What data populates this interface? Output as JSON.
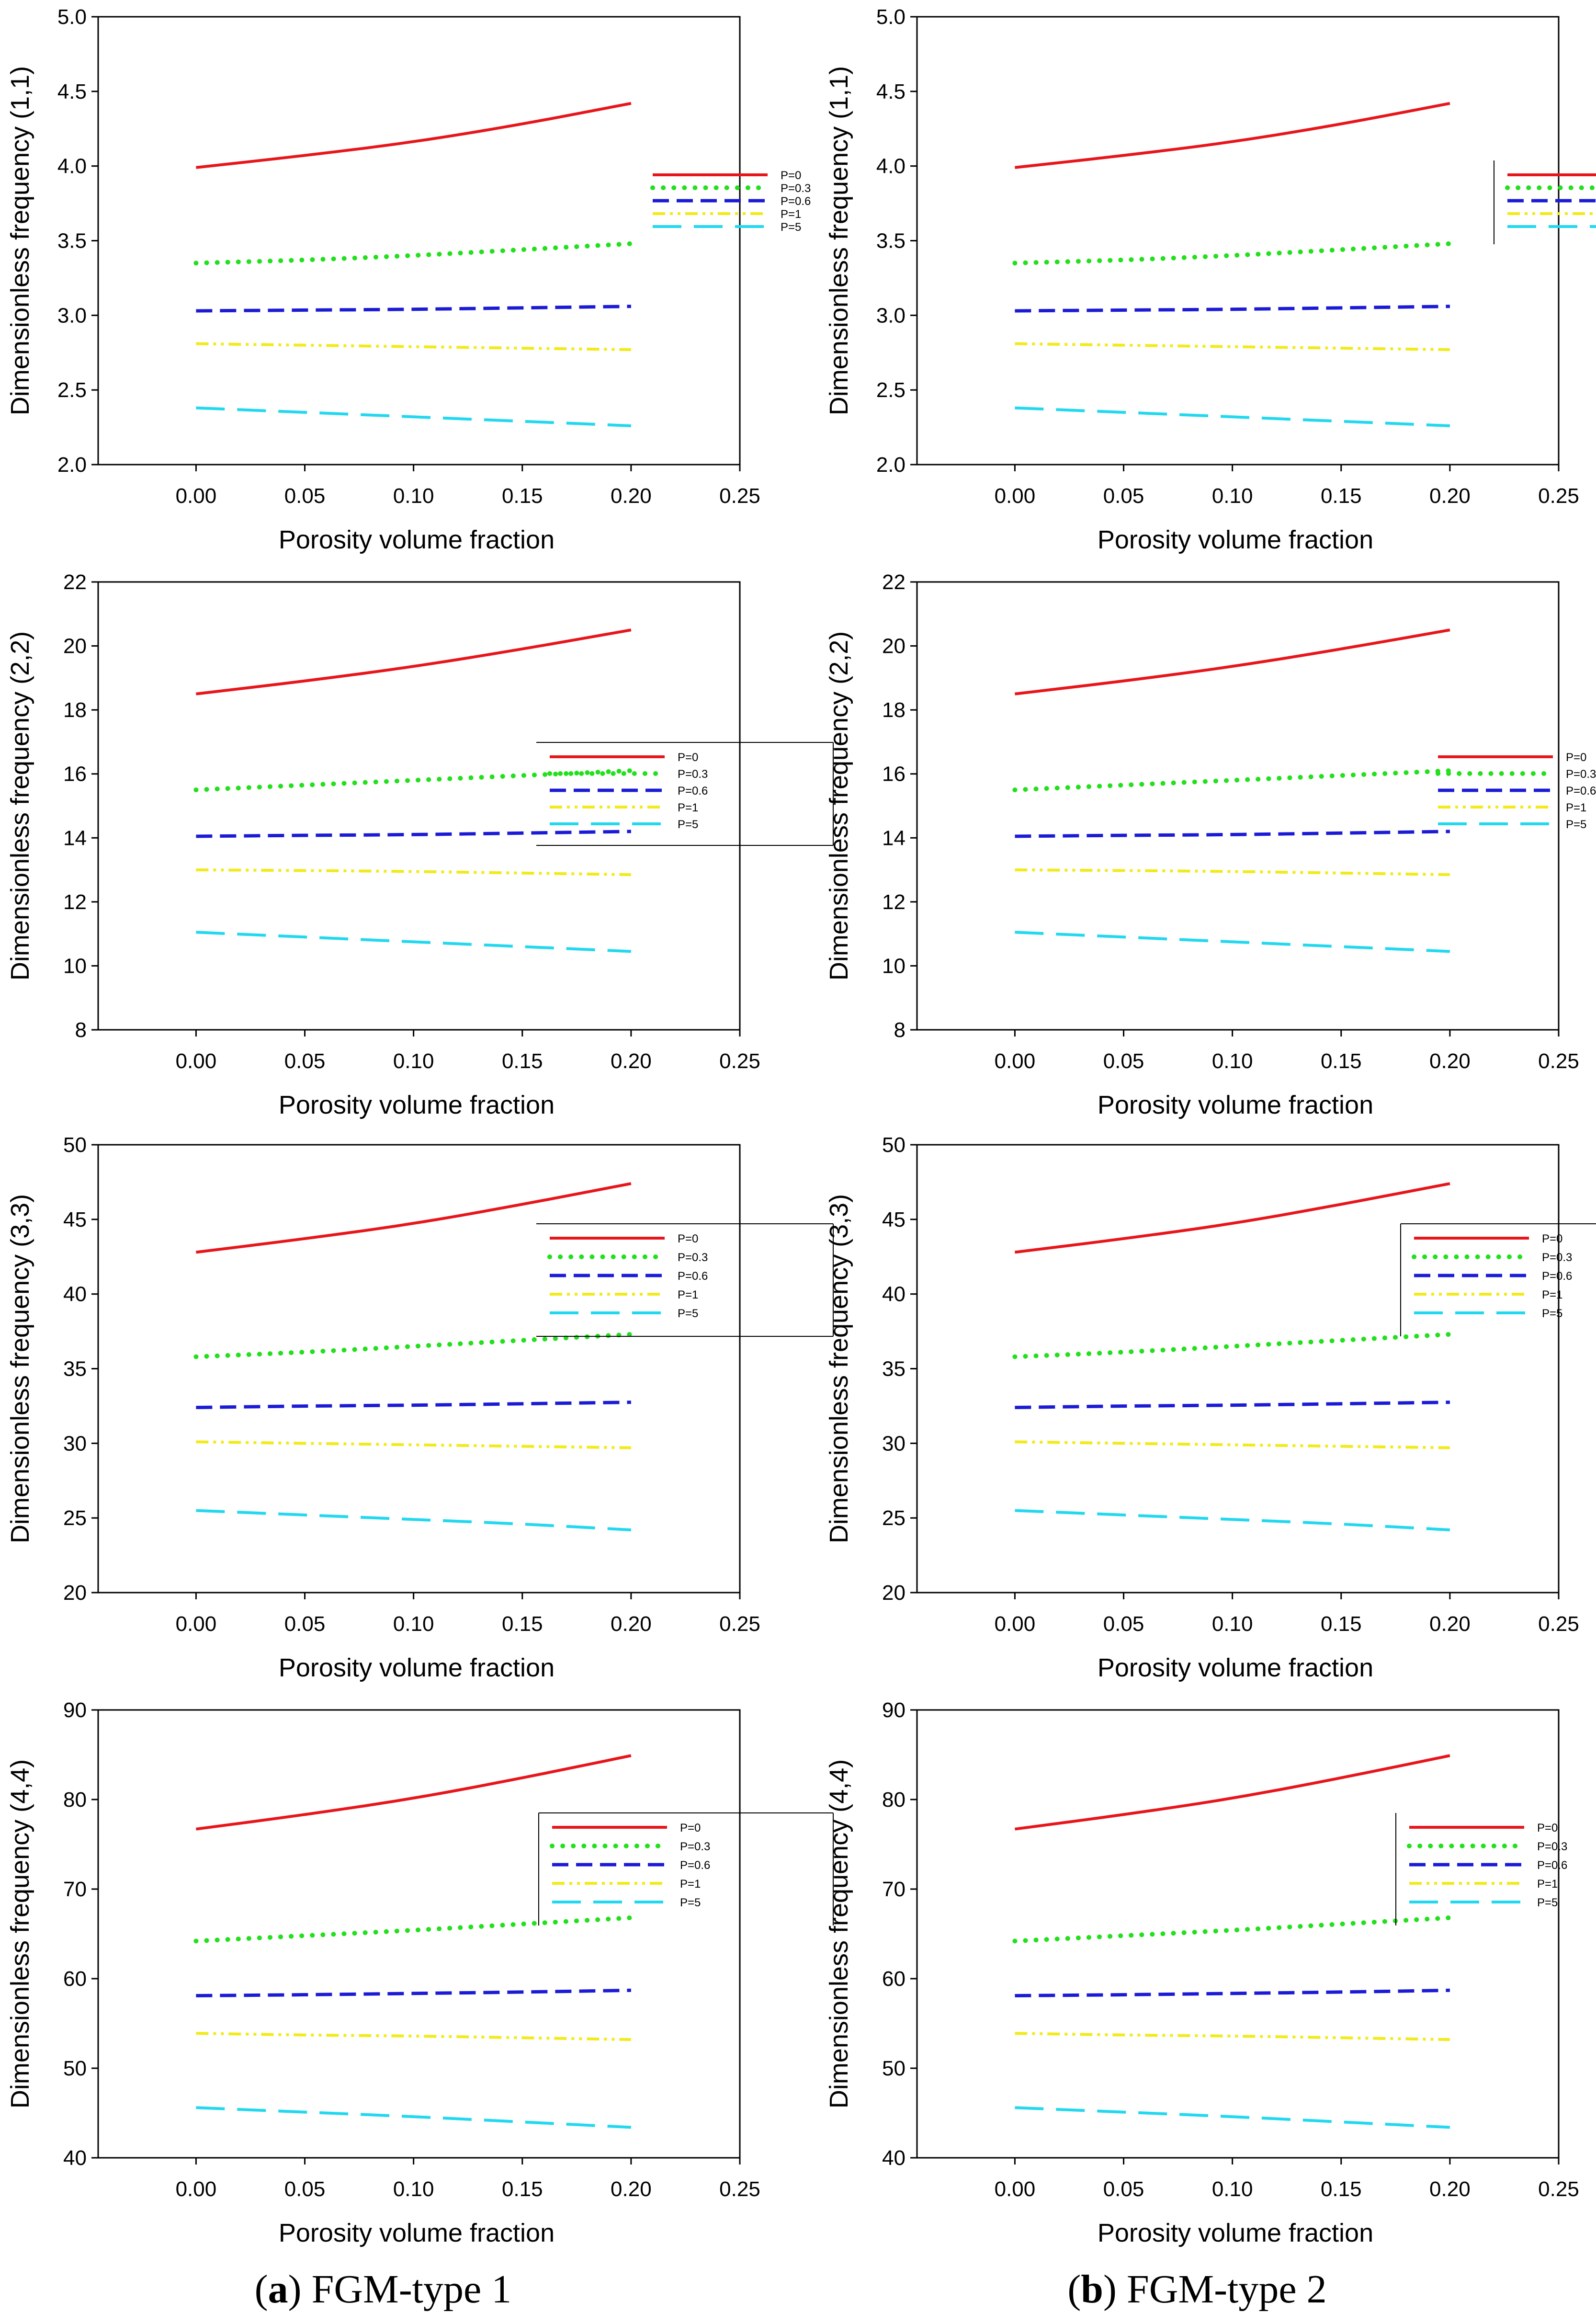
{
  "figure": {
    "captions": [
      {
        "letter": "a",
        "text": "FGM-type 1"
      },
      {
        "letter": "b",
        "text": "FGM-type 2"
      }
    ]
  },
  "legend_labels": [
    "P=0",
    "P=0.3",
    "P=0.6",
    "P=1",
    "P=5"
  ],
  "series_colors": {
    "P=0": "#e8151b",
    "P=0.3": "#22e01c",
    "P=0.6": "#1b1bd6",
    "P=1": "#f2ea1a",
    "P=5": "#22d8f0"
  },
  "chart_data": [
    {
      "type": "line",
      "panel": "a",
      "mode": "(1,1)",
      "xlabel": "Porosity volume fraction",
      "ylabel": "Dimensionless frequency (1,1)",
      "xlim": [
        -0.045,
        0.25
      ],
      "ylim": [
        2.0,
        5.0
      ],
      "xticks": [
        "0.00",
        "0.05",
        "0.10",
        "0.15",
        "0.20",
        "0.25"
      ],
      "yticks": [
        "2.0",
        "2.5",
        "3.0",
        "3.5",
        "4.0",
        "4.5",
        "5.0"
      ],
      "x": [
        0.0,
        0.05,
        0.1,
        0.15,
        0.2
      ],
      "series": [
        {
          "name": "P=0",
          "values": [
            3.99,
            4.07,
            4.16,
            4.28,
            4.42
          ]
        },
        {
          "name": "P=0.3",
          "values": [
            3.35,
            3.37,
            3.4,
            3.44,
            3.48
          ]
        },
        {
          "name": "P=0.6",
          "values": [
            3.03,
            3.035,
            3.04,
            3.05,
            3.06
          ]
        },
        {
          "name": "P=1",
          "values": [
            2.81,
            2.8,
            2.79,
            2.78,
            2.77
          ]
        },
        {
          "name": "P=5",
          "values": [
            2.38,
            2.35,
            2.32,
            2.29,
            2.26
          ]
        }
      ]
    },
    {
      "type": "line",
      "panel": "b",
      "mode": "(1,1)",
      "xlabel": "Porosity volume fraction",
      "ylabel": "Dimensionless frequency (1,1)",
      "xlim": [
        -0.045,
        0.25
      ],
      "ylim": [
        2.0,
        5.0
      ],
      "xticks": [
        "0.00",
        "0.05",
        "0.10",
        "0.15",
        "0.20",
        "0.25"
      ],
      "yticks": [
        "2.0",
        "2.5",
        "3.0",
        "3.5",
        "4.0",
        "4.5",
        "5.0"
      ],
      "x": [
        0.0,
        0.05,
        0.1,
        0.15,
        0.2
      ],
      "series": [
        {
          "name": "P=0",
          "values": [
            3.99,
            4.07,
            4.16,
            4.28,
            4.42
          ]
        },
        {
          "name": "P=0.3",
          "values": [
            3.35,
            3.37,
            3.4,
            3.44,
            3.48
          ]
        },
        {
          "name": "P=0.6",
          "values": [
            3.03,
            3.035,
            3.04,
            3.05,
            3.06
          ]
        },
        {
          "name": "P=1",
          "values": [
            2.81,
            2.8,
            2.79,
            2.78,
            2.77
          ]
        },
        {
          "name": "P=5",
          "values": [
            2.38,
            2.35,
            2.32,
            2.29,
            2.26
          ]
        }
      ]
    },
    {
      "type": "line",
      "panel": "a",
      "mode": "(2,2)",
      "xlabel": "Porosity volume fraction",
      "ylabel": "Dimensionless frequency (2,2)",
      "xlim": [
        -0.045,
        0.25
      ],
      "ylim": [
        8,
        22
      ],
      "xticks": [
        "0.00",
        "0.05",
        "0.10",
        "0.15",
        "0.20",
        "0.25"
      ],
      "yticks": [
        "8",
        "10",
        "12",
        "14",
        "16",
        "18",
        "20",
        "22"
      ],
      "x": [
        0.0,
        0.05,
        0.1,
        0.15,
        0.2
      ],
      "series": [
        {
          "name": "P=0",
          "values": [
            18.5,
            18.9,
            19.35,
            19.9,
            20.5
          ]
        },
        {
          "name": "P=0.3",
          "values": [
            15.5,
            15.65,
            15.8,
            15.95,
            16.1
          ]
        },
        {
          "name": "P=0.6",
          "values": [
            14.05,
            14.08,
            14.1,
            14.15,
            14.2
          ]
        },
        {
          "name": "P=1",
          "values": [
            13.0,
            12.98,
            12.95,
            12.9,
            12.85
          ]
        },
        {
          "name": "P=5",
          "values": [
            11.05,
            10.9,
            10.75,
            10.6,
            10.45
          ]
        }
      ]
    },
    {
      "type": "line",
      "panel": "b",
      "mode": "(2,2)",
      "xlabel": "Porosity volume fraction",
      "ylabel": "Dimensionless frequency (2,2)",
      "xlim": [
        -0.045,
        0.25
      ],
      "ylim": [
        8,
        22
      ],
      "xticks": [
        "0.00",
        "0.05",
        "0.10",
        "0.15",
        "0.20",
        "0.25"
      ],
      "yticks": [
        "8",
        "10",
        "12",
        "14",
        "16",
        "18",
        "20",
        "22"
      ],
      "x": [
        0.0,
        0.05,
        0.1,
        0.15,
        0.2
      ],
      "series": [
        {
          "name": "P=0",
          "values": [
            18.5,
            18.9,
            19.35,
            19.9,
            20.5
          ]
        },
        {
          "name": "P=0.3",
          "values": [
            15.5,
            15.65,
            15.8,
            15.95,
            16.1
          ]
        },
        {
          "name": "P=0.6",
          "values": [
            14.05,
            14.08,
            14.1,
            14.15,
            14.2
          ]
        },
        {
          "name": "P=1",
          "values": [
            13.0,
            12.98,
            12.95,
            12.9,
            12.85
          ]
        },
        {
          "name": "P=5",
          "values": [
            11.05,
            10.9,
            10.75,
            10.6,
            10.45
          ]
        }
      ]
    },
    {
      "type": "line",
      "panel": "a",
      "mode": "(3,3)",
      "xlabel": "Porosity volume fraction",
      "ylabel": "Dimensionless frequency (3,3)",
      "xlim": [
        -0.045,
        0.25
      ],
      "ylim": [
        20,
        50
      ],
      "xticks": [
        "0.00",
        "0.05",
        "0.10",
        "0.15",
        "0.20",
        "0.25"
      ],
      "yticks": [
        "20",
        "25",
        "30",
        "35",
        "40",
        "45",
        "50"
      ],
      "x": [
        0.0,
        0.05,
        0.1,
        0.15,
        0.2
      ],
      "series": [
        {
          "name": "P=0",
          "values": [
            42.8,
            43.7,
            44.7,
            46.0,
            47.4
          ]
        },
        {
          "name": "P=0.3",
          "values": [
            35.8,
            36.1,
            36.5,
            36.9,
            37.3
          ]
        },
        {
          "name": "P=0.6",
          "values": [
            32.4,
            32.5,
            32.55,
            32.65,
            32.75
          ]
        },
        {
          "name": "P=1",
          "values": [
            30.1,
            30.0,
            29.9,
            29.8,
            29.7
          ]
        },
        {
          "name": "P=5",
          "values": [
            25.5,
            25.2,
            24.9,
            24.6,
            24.2
          ]
        }
      ]
    },
    {
      "type": "line",
      "panel": "b",
      "mode": "(3,3)",
      "xlabel": "Porosity volume fraction",
      "ylabel": "Dimensionless frequency (3,3)",
      "xlim": [
        -0.045,
        0.25
      ],
      "ylim": [
        20,
        50
      ],
      "xticks": [
        "0.00",
        "0.05",
        "0.10",
        "0.15",
        "0.20",
        "0.25"
      ],
      "yticks": [
        "20",
        "25",
        "30",
        "35",
        "40",
        "45",
        "50"
      ],
      "x": [
        0.0,
        0.05,
        0.1,
        0.15,
        0.2
      ],
      "series": [
        {
          "name": "P=0",
          "values": [
            42.8,
            43.7,
            44.7,
            46.0,
            47.4
          ]
        },
        {
          "name": "P=0.3",
          "values": [
            35.8,
            36.1,
            36.5,
            36.9,
            37.3
          ]
        },
        {
          "name": "P=0.6",
          "values": [
            32.4,
            32.5,
            32.55,
            32.65,
            32.75
          ]
        },
        {
          "name": "P=1",
          "values": [
            30.1,
            30.0,
            29.9,
            29.8,
            29.7
          ]
        },
        {
          "name": "P=5",
          "values": [
            25.5,
            25.2,
            24.9,
            24.6,
            24.2
          ]
        }
      ]
    },
    {
      "type": "line",
      "panel": "a",
      "mode": "(4,4)",
      "xlabel": "Porosity volume fraction",
      "ylabel": "Dimensionless frequency (4,4)",
      "xlim": [
        -0.045,
        0.25
      ],
      "ylim": [
        40,
        90
      ],
      "xticks": [
        "0.00",
        "0.05",
        "0.10",
        "0.15",
        "0.20",
        "0.25"
      ],
      "yticks": [
        "40",
        "50",
        "60",
        "70",
        "80",
        "90"
      ],
      "x": [
        0.0,
        0.05,
        0.1,
        0.15,
        0.2
      ],
      "series": [
        {
          "name": "P=0",
          "values": [
            76.7,
            78.3,
            80.1,
            82.4,
            84.9
          ]
        },
        {
          "name": "P=0.3",
          "values": [
            64.2,
            64.8,
            65.4,
            66.1,
            66.8
          ]
        },
        {
          "name": "P=0.6",
          "values": [
            58.1,
            58.2,
            58.35,
            58.5,
            58.7
          ]
        },
        {
          "name": "P=1",
          "values": [
            53.9,
            53.7,
            53.6,
            53.4,
            53.2
          ]
        },
        {
          "name": "P=5",
          "values": [
            45.6,
            45.1,
            44.6,
            44.0,
            43.4
          ]
        }
      ]
    },
    {
      "type": "line",
      "panel": "b",
      "mode": "(4,4)",
      "xlabel": "Porosity volume fraction",
      "ylabel": "Dimensionless frequency (4,4)",
      "xlim": [
        -0.045,
        0.25
      ],
      "ylim": [
        40,
        90
      ],
      "xticks": [
        "0.00",
        "0.05",
        "0.10",
        "0.15",
        "0.20",
        "0.25"
      ],
      "yticks": [
        "40",
        "50",
        "60",
        "70",
        "80",
        "90"
      ],
      "x": [
        0.0,
        0.05,
        0.1,
        0.15,
        0.2
      ],
      "series": [
        {
          "name": "P=0",
          "values": [
            76.7,
            78.3,
            80.1,
            82.4,
            84.9
          ]
        },
        {
          "name": "P=0.3",
          "values": [
            64.2,
            64.8,
            65.4,
            66.1,
            66.8
          ]
        },
        {
          "name": "P=0.6",
          "values": [
            58.1,
            58.2,
            58.35,
            58.5,
            58.7
          ]
        },
        {
          "name": "P=1",
          "values": [
            53.9,
            53.7,
            53.6,
            53.4,
            53.2
          ]
        },
        {
          "name": "P=5",
          "values": [
            45.6,
            45.1,
            44.6,
            44.0,
            43.4
          ]
        }
      ]
    }
  ]
}
